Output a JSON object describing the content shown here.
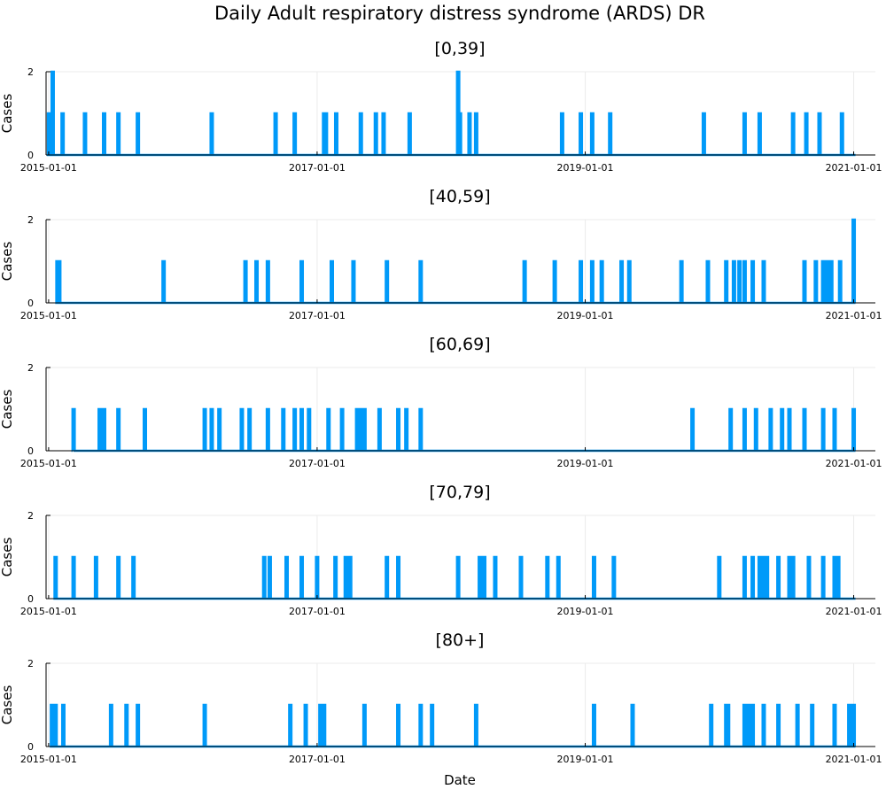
{
  "title": "Daily Adult respiratory distress syndrome (ARDS) DR",
  "chart_data": {
    "type": "line",
    "title": "Daily Adult respiratory distress syndrome (ARDS) DR",
    "xlabel": "Date",
    "ylabel": "Cases",
    "x_range": [
      "2014-12-25",
      "2021-03-01"
    ],
    "xticks": [
      "2015-01-01",
      "2017-01-01",
      "2019-01-01",
      "2021-01-01"
    ],
    "ylim": [
      0,
      2
    ],
    "yticks": [
      0,
      2
    ],
    "grid": true,
    "legend": "none",
    "line_color": "#009af9",
    "panels": [
      {
        "name": "[0,39]",
        "events": [
          {
            "date": "2015-01-02",
            "value": 1
          },
          {
            "date": "2015-01-12",
            "value": 2
          },
          {
            "date": "2015-02-08",
            "value": 1
          },
          {
            "date": "2015-04-10",
            "value": 1
          },
          {
            "date": "2015-06-01",
            "value": 1
          },
          {
            "date": "2015-07-10",
            "value": 1
          },
          {
            "date": "2015-09-01",
            "value": 1
          },
          {
            "date": "2016-03-20",
            "value": 1
          },
          {
            "date": "2016-09-10",
            "value": 1
          },
          {
            "date": "2016-11-01",
            "value": 1
          },
          {
            "date": "2017-01-20",
            "value": 1
          },
          {
            "date": "2017-01-25",
            "value": 1
          },
          {
            "date": "2017-02-22",
            "value": 1
          },
          {
            "date": "2017-04-30",
            "value": 1
          },
          {
            "date": "2017-06-10",
            "value": 1
          },
          {
            "date": "2017-07-01",
            "value": 1
          },
          {
            "date": "2017-09-10",
            "value": 1
          },
          {
            "date": "2018-01-20",
            "value": 2
          },
          {
            "date": "2018-01-25",
            "value": 1
          },
          {
            "date": "2018-02-20",
            "value": 1
          },
          {
            "date": "2018-03-10",
            "value": 1
          },
          {
            "date": "2018-10-30",
            "value": 1
          },
          {
            "date": "2018-12-20",
            "value": 1
          },
          {
            "date": "2019-01-20",
            "value": 1
          },
          {
            "date": "2019-03-10",
            "value": 1
          },
          {
            "date": "2019-11-20",
            "value": 1
          },
          {
            "date": "2020-03-10",
            "value": 1
          },
          {
            "date": "2020-04-20",
            "value": 1
          },
          {
            "date": "2020-07-20",
            "value": 1
          },
          {
            "date": "2020-08-25",
            "value": 1
          },
          {
            "date": "2020-09-30",
            "value": 1
          },
          {
            "date": "2020-11-30",
            "value": 1
          }
        ]
      },
      {
        "name": "[40,59]",
        "events": [
          {
            "date": "2015-01-25",
            "value": 1
          },
          {
            "date": "2015-01-30",
            "value": 1
          },
          {
            "date": "2015-11-10",
            "value": 1
          },
          {
            "date": "2016-06-20",
            "value": 1
          },
          {
            "date": "2016-07-20",
            "value": 1
          },
          {
            "date": "2016-08-20",
            "value": 1
          },
          {
            "date": "2016-11-20",
            "value": 1
          },
          {
            "date": "2017-02-10",
            "value": 1
          },
          {
            "date": "2017-04-10",
            "value": 1
          },
          {
            "date": "2017-07-10",
            "value": 1
          },
          {
            "date": "2017-10-10",
            "value": 1
          },
          {
            "date": "2018-07-20",
            "value": 1
          },
          {
            "date": "2018-10-10",
            "value": 1
          },
          {
            "date": "2018-12-20",
            "value": 1
          },
          {
            "date": "2019-01-20",
            "value": 1
          },
          {
            "date": "2019-02-15",
            "value": 1
          },
          {
            "date": "2019-04-10",
            "value": 1
          },
          {
            "date": "2019-05-01",
            "value": 1
          },
          {
            "date": "2019-09-20",
            "value": 1
          },
          {
            "date": "2019-12-01",
            "value": 1
          },
          {
            "date": "2020-01-20",
            "value": 1
          },
          {
            "date": "2020-02-10",
            "value": 1
          },
          {
            "date": "2020-02-25",
            "value": 1
          },
          {
            "date": "2020-03-10",
            "value": 1
          },
          {
            "date": "2020-04-01",
            "value": 1
          },
          {
            "date": "2020-05-01",
            "value": 1
          },
          {
            "date": "2020-08-20",
            "value": 1
          },
          {
            "date": "2020-09-20",
            "value": 1
          },
          {
            "date": "2020-10-10",
            "value": 1
          },
          {
            "date": "2020-10-20",
            "value": 1
          },
          {
            "date": "2020-11-01",
            "value": 1
          },
          {
            "date": "2020-11-25",
            "value": 1
          },
          {
            "date": "2021-01-01",
            "value": 2
          }
        ]
      },
      {
        "name": "[60,69]",
        "events": [
          {
            "date": "2015-03-10",
            "value": 1
          },
          {
            "date": "2015-05-20",
            "value": 1
          },
          {
            "date": "2015-06-01",
            "value": 1
          },
          {
            "date": "2015-07-10",
            "value": 1
          },
          {
            "date": "2015-09-20",
            "value": 1
          },
          {
            "date": "2016-03-01",
            "value": 1
          },
          {
            "date": "2016-03-20",
            "value": 1
          },
          {
            "date": "2016-04-10",
            "value": 1
          },
          {
            "date": "2016-06-10",
            "value": 1
          },
          {
            "date": "2016-07-01",
            "value": 1
          },
          {
            "date": "2016-08-20",
            "value": 1
          },
          {
            "date": "2016-10-01",
            "value": 1
          },
          {
            "date": "2016-11-01",
            "value": 1
          },
          {
            "date": "2016-11-20",
            "value": 1
          },
          {
            "date": "2016-12-10",
            "value": 1
          },
          {
            "date": "2017-02-01",
            "value": 1
          },
          {
            "date": "2017-03-10",
            "value": 1
          },
          {
            "date": "2017-04-20",
            "value": 1
          },
          {
            "date": "2017-05-01",
            "value": 1
          },
          {
            "date": "2017-05-10",
            "value": 1
          },
          {
            "date": "2017-06-20",
            "value": 1
          },
          {
            "date": "2017-08-10",
            "value": 1
          },
          {
            "date": "2017-09-01",
            "value": 1
          },
          {
            "date": "2017-10-10",
            "value": 1
          },
          {
            "date": "2019-10-20",
            "value": 1
          },
          {
            "date": "2020-02-01",
            "value": 1
          },
          {
            "date": "2020-03-10",
            "value": 1
          },
          {
            "date": "2020-04-10",
            "value": 1
          },
          {
            "date": "2020-05-20",
            "value": 1
          },
          {
            "date": "2020-06-20",
            "value": 1
          },
          {
            "date": "2020-07-10",
            "value": 1
          },
          {
            "date": "2020-08-20",
            "value": 1
          },
          {
            "date": "2020-10-10",
            "value": 1
          },
          {
            "date": "2020-11-10",
            "value": 1
          },
          {
            "date": "2021-01-01",
            "value": 1
          }
        ]
      },
      {
        "name": "[70,79]",
        "events": [
          {
            "date": "2015-01-20",
            "value": 1
          },
          {
            "date": "2015-03-10",
            "value": 1
          },
          {
            "date": "2015-05-10",
            "value": 1
          },
          {
            "date": "2015-07-10",
            "value": 1
          },
          {
            "date": "2015-08-20",
            "value": 1
          },
          {
            "date": "2016-08-10",
            "value": 1
          },
          {
            "date": "2016-08-25",
            "value": 1
          },
          {
            "date": "2016-10-10",
            "value": 1
          },
          {
            "date": "2016-11-20",
            "value": 1
          },
          {
            "date": "2017-01-01",
            "value": 1
          },
          {
            "date": "2017-02-20",
            "value": 1
          },
          {
            "date": "2017-03-20",
            "value": 1
          },
          {
            "date": "2017-04-01",
            "value": 1
          },
          {
            "date": "2017-07-10",
            "value": 1
          },
          {
            "date": "2017-08-10",
            "value": 1
          },
          {
            "date": "2018-01-20",
            "value": 1
          },
          {
            "date": "2018-03-20",
            "value": 1
          },
          {
            "date": "2018-04-01",
            "value": 1
          },
          {
            "date": "2018-05-01",
            "value": 1
          },
          {
            "date": "2018-07-10",
            "value": 1
          },
          {
            "date": "2018-09-20",
            "value": 1
          },
          {
            "date": "2018-10-20",
            "value": 1
          },
          {
            "date": "2019-01-25",
            "value": 1
          },
          {
            "date": "2019-03-20",
            "value": 1
          },
          {
            "date": "2020-01-01",
            "value": 1
          },
          {
            "date": "2020-03-10",
            "value": 1
          },
          {
            "date": "2020-04-01",
            "value": 1
          },
          {
            "date": "2020-04-20",
            "value": 1
          },
          {
            "date": "2020-05-01",
            "value": 1
          },
          {
            "date": "2020-05-10",
            "value": 1
          },
          {
            "date": "2020-06-10",
            "value": 1
          },
          {
            "date": "2020-07-10",
            "value": 1
          },
          {
            "date": "2020-07-20",
            "value": 1
          },
          {
            "date": "2020-09-01",
            "value": 1
          },
          {
            "date": "2020-10-10",
            "value": 1
          },
          {
            "date": "2020-11-10",
            "value": 1
          },
          {
            "date": "2020-11-20",
            "value": 1
          }
        ]
      },
      {
        "name": "[80+]",
        "events": [
          {
            "date": "2015-01-10",
            "value": 1
          },
          {
            "date": "2015-01-20",
            "value": 1
          },
          {
            "date": "2015-02-10",
            "value": 1
          },
          {
            "date": "2015-06-20",
            "value": 1
          },
          {
            "date": "2015-08-01",
            "value": 1
          },
          {
            "date": "2015-09-01",
            "value": 1
          },
          {
            "date": "2016-03-01",
            "value": 1
          },
          {
            "date": "2016-10-20",
            "value": 1
          },
          {
            "date": "2016-12-01",
            "value": 1
          },
          {
            "date": "2017-01-10",
            "value": 1
          },
          {
            "date": "2017-01-20",
            "value": 1
          },
          {
            "date": "2017-05-10",
            "value": 1
          },
          {
            "date": "2017-08-10",
            "value": 1
          },
          {
            "date": "2017-10-10",
            "value": 1
          },
          {
            "date": "2017-11-10",
            "value": 1
          },
          {
            "date": "2018-03-10",
            "value": 1
          },
          {
            "date": "2019-01-25",
            "value": 1
          },
          {
            "date": "2019-05-10",
            "value": 1
          },
          {
            "date": "2019-12-10",
            "value": 1
          },
          {
            "date": "2020-01-20",
            "value": 1
          },
          {
            "date": "2020-01-25",
            "value": 1
          },
          {
            "date": "2020-03-10",
            "value": 1
          },
          {
            "date": "2020-03-20",
            "value": 1
          },
          {
            "date": "2020-04-01",
            "value": 1
          },
          {
            "date": "2020-05-01",
            "value": 1
          },
          {
            "date": "2020-06-10",
            "value": 1
          },
          {
            "date": "2020-08-01",
            "value": 1
          },
          {
            "date": "2020-09-10",
            "value": 1
          },
          {
            "date": "2020-11-10",
            "value": 1
          },
          {
            "date": "2020-12-20",
            "value": 1
          },
          {
            "date": "2021-01-01",
            "value": 1
          }
        ]
      }
    ]
  }
}
